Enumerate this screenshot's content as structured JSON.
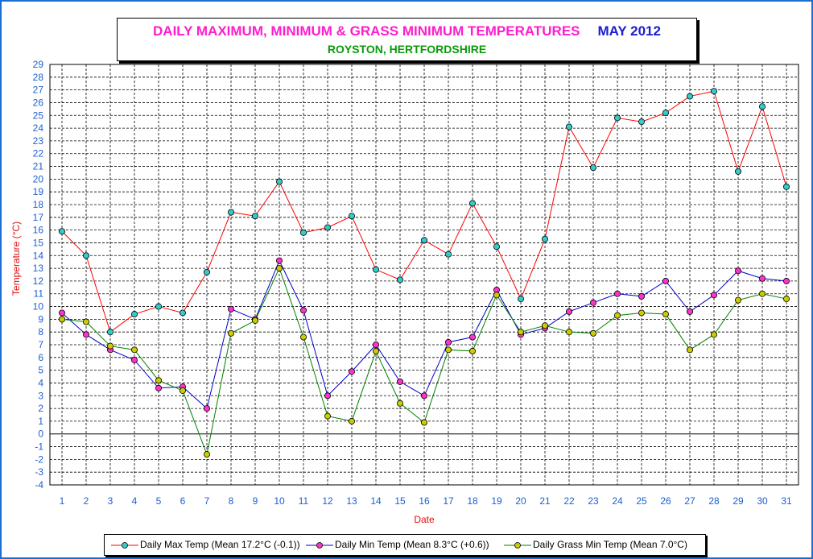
{
  "chart_data": {
    "type": "line",
    "title": "DAILY MAXIMUM, MINIMUM & GRASS MINIMUM TEMPERATURES",
    "title_month": "MAY 2012",
    "subtitle": "ROYSTON, HERTFORDSHIRE",
    "xlabel": "Date",
    "ylabel": "Temperature (°C)",
    "ylim": [
      -4,
      29
    ],
    "x": [
      1,
      2,
      3,
      4,
      5,
      6,
      7,
      8,
      9,
      10,
      11,
      12,
      13,
      14,
      15,
      16,
      17,
      18,
      19,
      20,
      21,
      22,
      23,
      24,
      25,
      26,
      27,
      28,
      29,
      30,
      31
    ],
    "grid": true,
    "legend_position": "bottom",
    "series": [
      {
        "name": "Daily Max Temp (Mean 17.2°C (-0.1))",
        "line_color": "#ff0000",
        "marker_color": "#33cccc",
        "values": [
          15.9,
          14.0,
          8.0,
          9.4,
          10.0,
          9.5,
          12.7,
          17.4,
          17.1,
          19.8,
          15.8,
          16.2,
          17.1,
          12.9,
          12.1,
          15.2,
          14.1,
          18.1,
          14.7,
          10.6,
          15.3,
          24.1,
          20.9,
          24.8,
          24.5,
          25.2,
          26.5,
          26.9,
          20.6,
          25.7,
          19.4
        ]
      },
      {
        "name": "Daily Min Temp (Mean 8.3°C (+0.6))",
        "line_color": "#0000cc",
        "marker_color": "#ff33cc",
        "values": [
          9.5,
          7.8,
          6.6,
          5.8,
          3.6,
          3.7,
          2.0,
          9.8,
          9.0,
          13.6,
          9.7,
          3.0,
          4.9,
          7.0,
          4.1,
          3.0,
          7.2,
          7.6,
          11.3,
          7.8,
          8.3,
          9.6,
          10.3,
          11.0,
          10.8,
          12.0,
          9.6,
          10.9,
          12.8,
          12.2,
          12.0
        ]
      },
      {
        "name": "Daily Grass Min Temp (Mean 7.0°C)",
        "line_color": "#008000",
        "marker_color": "#cccc00",
        "values": [
          9.0,
          8.8,
          6.9,
          6.6,
          4.2,
          3.4,
          -1.6,
          7.9,
          8.9,
          13.0,
          7.6,
          1.4,
          1.0,
          6.5,
          2.4,
          0.9,
          6.6,
          6.5,
          10.9,
          8.0,
          8.5,
          8.0,
          7.9,
          9.3,
          9.5,
          9.4,
          6.6,
          7.8,
          10.5,
          11.0,
          10.6
        ]
      }
    ]
  }
}
